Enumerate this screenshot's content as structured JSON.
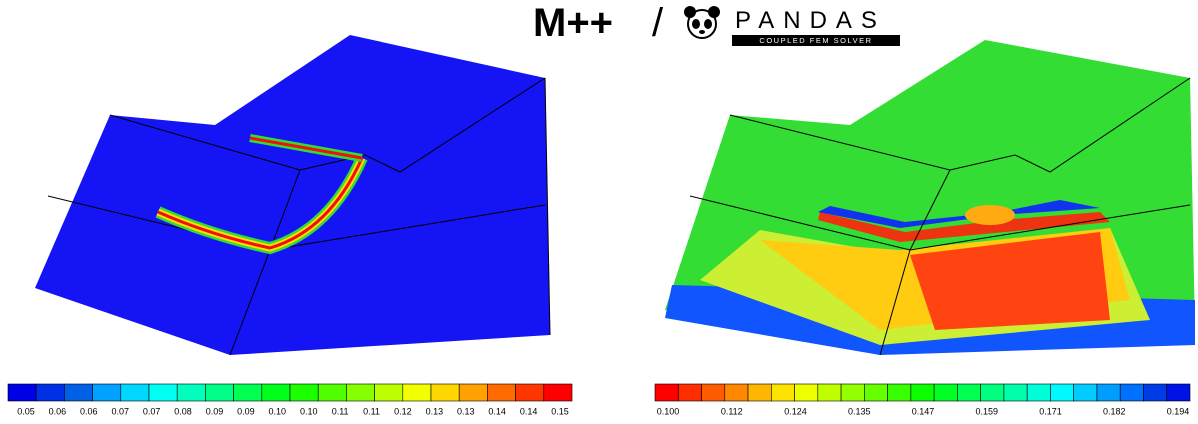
{
  "header": {
    "product": "M++",
    "separator": "/",
    "brand": "PANDAS",
    "tagline": "COUPLED FEM SOLVER"
  },
  "colorbars": [
    {
      "labels": [
        "0.05",
        "0.06",
        "0.06",
        "0.07",
        "0.07",
        "0.08",
        "0.09",
        "0.09",
        "0.10",
        "0.10",
        "0.11",
        "0.11",
        "0.12",
        "0.13",
        "0.13",
        "0.14",
        "0.14",
        "0.15"
      ]
    },
    {
      "labels": [
        "0.100",
        "0.112",
        "0.124",
        "0.135",
        "0.147",
        "0.159",
        "0.171",
        "0.182",
        "0.194"
      ]
    }
  ]
}
